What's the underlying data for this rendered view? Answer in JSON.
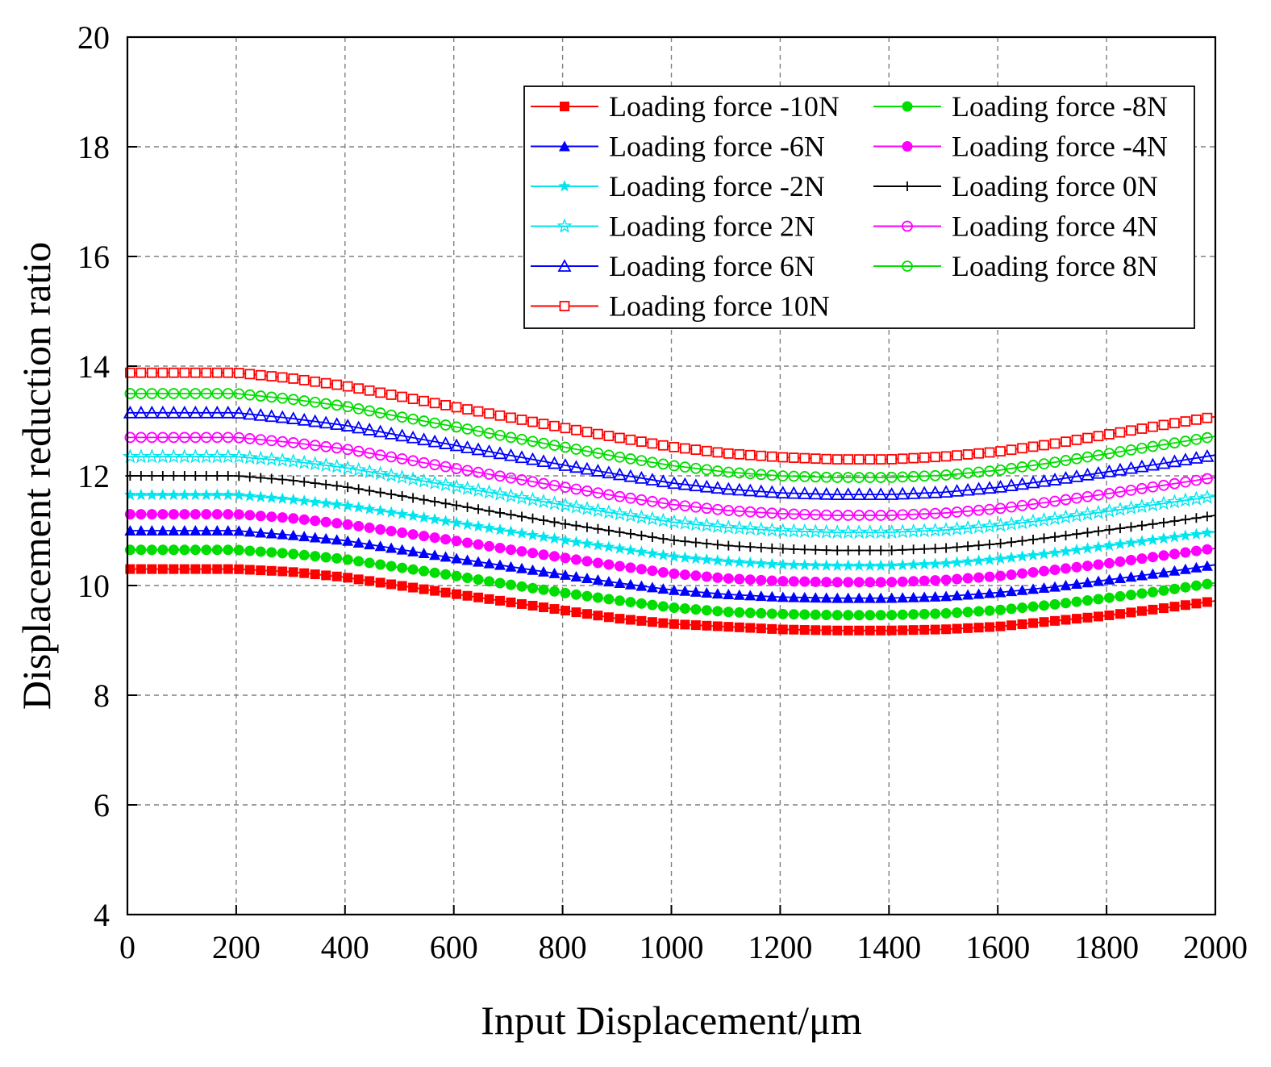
{
  "chart_data": {
    "type": "line",
    "xlabel": "Input Displacement/μm",
    "ylabel": "Displacement reduction ratio",
    "xlim": [
      0,
      2000
    ],
    "ylim": [
      4,
      20
    ],
    "xticks": [
      "0",
      "200",
      "400",
      "600",
      "800",
      "1000",
      "1200",
      "1400",
      "1600",
      "1800",
      "2000"
    ],
    "yticks": [
      "4",
      "6",
      "8",
      "10",
      "12",
      "14",
      "16",
      "18",
      "20"
    ],
    "grid": true,
    "legend_position": "top-right",
    "x": [
      0,
      100,
      200,
      300,
      400,
      500,
      600,
      700,
      800,
      900,
      1000,
      1100,
      1200,
      1300,
      1400,
      1500,
      1600,
      1700,
      1800,
      1900,
      2000
    ],
    "series": [
      {
        "name": "Loading force -10N",
        "color": "#ff0000",
        "marker": "square-filled",
        "values": [
          10.3,
          10.3,
          10.3,
          10.25,
          10.15,
          10.0,
          9.85,
          9.7,
          9.55,
          9.4,
          9.3,
          9.25,
          9.2,
          9.18,
          9.18,
          9.2,
          9.25,
          9.35,
          9.45,
          9.58,
          9.72
        ]
      },
      {
        "name": "Loading force -8N",
        "color": "#00dd00",
        "marker": "circle-filled",
        "values": [
          10.65,
          10.65,
          10.65,
          10.58,
          10.48,
          10.33,
          10.18,
          10.02,
          9.87,
          9.73,
          9.6,
          9.52,
          9.48,
          9.46,
          9.46,
          9.49,
          9.55,
          9.65,
          9.77,
          9.9,
          10.05
        ]
      },
      {
        "name": "Loading force -6N",
        "color": "#0000ff",
        "marker": "triangle-filled",
        "values": [
          11.0,
          11.0,
          11.0,
          10.92,
          10.82,
          10.66,
          10.5,
          10.35,
          10.2,
          10.05,
          9.92,
          9.84,
          9.79,
          9.77,
          9.77,
          9.8,
          9.87,
          9.97,
          10.1,
          10.23,
          10.38
        ]
      },
      {
        "name": "Loading force -4N",
        "color": "#ff00ff",
        "marker": "circle-filled",
        "values": [
          11.3,
          11.3,
          11.3,
          11.23,
          11.12,
          10.97,
          10.82,
          10.66,
          10.51,
          10.36,
          10.22,
          10.13,
          10.08,
          10.06,
          10.06,
          10.1,
          10.17,
          10.28,
          10.4,
          10.54,
          10.68
        ]
      },
      {
        "name": "Loading force -2N",
        "color": "#00e5ee",
        "marker": "star-filled",
        "values": [
          11.65,
          11.65,
          11.65,
          11.57,
          11.46,
          11.31,
          11.15,
          10.99,
          10.83,
          10.68,
          10.53,
          10.44,
          10.38,
          10.36,
          10.36,
          10.4,
          10.48,
          10.59,
          10.72,
          10.85,
          10.98
        ]
      },
      {
        "name": "Loading force 0N",
        "color": "#000000",
        "marker": "plus",
        "values": [
          12.0,
          12.0,
          12.0,
          11.92,
          11.8,
          11.64,
          11.47,
          11.3,
          11.13,
          10.98,
          10.83,
          10.73,
          10.67,
          10.64,
          10.64,
          10.68,
          10.76,
          10.88,
          11.01,
          11.14,
          11.28
        ]
      },
      {
        "name": "Loading force 2N",
        "color": "#00e5ee",
        "marker": "star-open",
        "values": [
          12.35,
          12.35,
          12.35,
          12.27,
          12.15,
          11.98,
          11.81,
          11.64,
          11.47,
          11.31,
          11.16,
          11.06,
          11.0,
          10.97,
          10.97,
          11.01,
          11.09,
          11.21,
          11.35,
          11.49,
          11.63
        ]
      },
      {
        "name": "Loading force 4N",
        "color": "#ff00ff",
        "marker": "circle-open",
        "values": [
          12.7,
          12.7,
          12.7,
          12.61,
          12.49,
          12.32,
          12.14,
          11.97,
          11.8,
          11.63,
          11.48,
          11.37,
          11.31,
          11.28,
          11.28,
          11.32,
          11.4,
          11.53,
          11.67,
          11.82,
          11.97
        ]
      },
      {
        "name": "Loading force 6N",
        "color": "#0000ff",
        "marker": "triangle-open",
        "values": [
          13.15,
          13.15,
          13.15,
          13.05,
          12.92,
          12.74,
          12.56,
          12.38,
          12.2,
          12.03,
          11.87,
          11.76,
          11.69,
          11.66,
          11.66,
          11.7,
          11.79,
          11.92,
          12.07,
          12.22,
          12.38
        ]
      },
      {
        "name": "Loading force 8N",
        "color": "#00dd00",
        "marker": "circle-open",
        "values": [
          13.5,
          13.5,
          13.5,
          13.4,
          13.27,
          13.08,
          12.9,
          12.71,
          12.53,
          12.35,
          12.19,
          12.07,
          12.0,
          11.97,
          11.97,
          12.01,
          12.1,
          12.24,
          12.4,
          12.56,
          12.72
        ]
      },
      {
        "name": "Loading force 10N",
        "color": "#ff0000",
        "marker": "square-open",
        "values": [
          13.88,
          13.88,
          13.88,
          13.78,
          13.64,
          13.45,
          13.26,
          13.07,
          12.88,
          12.7,
          12.53,
          12.41,
          12.34,
          12.3,
          12.3,
          12.35,
          12.44,
          12.58,
          12.75,
          12.92,
          13.08
        ]
      }
    ]
  }
}
